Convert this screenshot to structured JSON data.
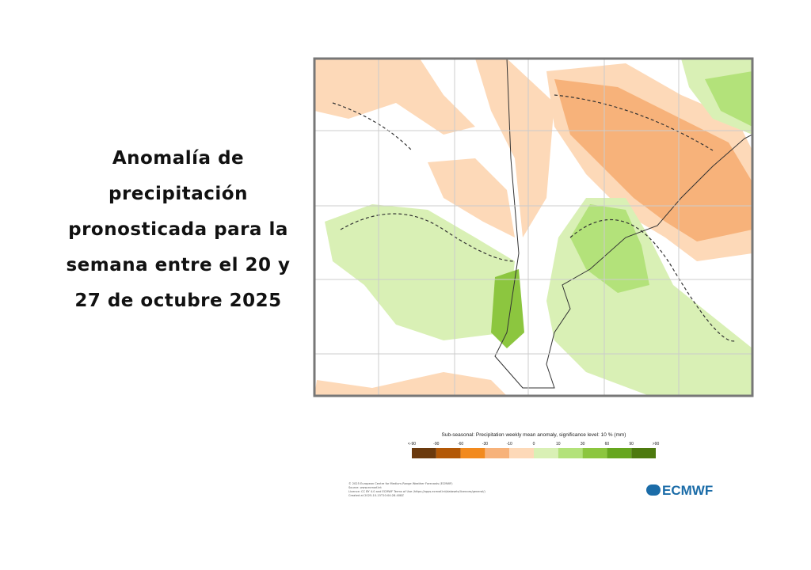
{
  "title": "Anomalía de precipitación pronosticada para la semana entre el 20 y 27 de octubre 2025",
  "legend": {
    "title": "Sub-seasonal: Precipitation weekly mean anomaly, significance level: 10 % (mm)",
    "labels": [
      "<-90",
      "-90",
      "-60",
      "-30",
      "-10",
      "0",
      "10",
      "30",
      "60",
      "90",
      ">90"
    ],
    "colors": [
      "#6b3a0e",
      "#b35806",
      "#f28a1e",
      "#f7b27a",
      "#fdd9b8",
      "#d9f0b5",
      "#b3e27a",
      "#8cc63f",
      "#66a61e",
      "#4d7a0f"
    ]
  },
  "credits": [
    "© 2025 European Centre for Medium-Range Weather Forecasts (ECMWF)",
    "Source: www.ecmwf.int",
    "Licence: CC BY 4.0 and ECMWF Terms of Use (https://apps.ecmwf.int/datasets/licences/general/)",
    "Created at 2025-10-15T10:04:28.408Z"
  ],
  "logo": "ECMWF"
}
